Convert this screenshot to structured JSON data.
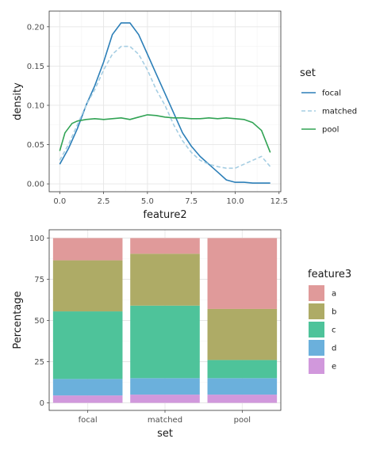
{
  "chart_data": [
    {
      "type": "line",
      "subtype": "density",
      "xlabel": "feature2",
      "ylabel": "density",
      "xlim": [
        -0.6,
        12.6
      ],
      "ylim": [
        -0.01,
        0.22
      ],
      "xticks": [
        0,
        2.5,
        5,
        7.5,
        10,
        12.5
      ],
      "xtick_labels": [
        "0.0",
        "2.5",
        "5.0",
        "7.5",
        "10.0",
        "12.5"
      ],
      "yticks": [
        0,
        0.05,
        0.1,
        0.15,
        0.2
      ],
      "ytick_labels": [
        "0.00",
        "0.05",
        "0.10",
        "0.15",
        "0.20"
      ],
      "grid": true,
      "legend": {
        "title": "set",
        "position": "right"
      },
      "series": [
        {
          "name": "focal",
          "color": "#2c7fb8",
          "dash": "solid",
          "points": [
            [
              0,
              0.025
            ],
            [
              0.5,
              0.045
            ],
            [
              1,
              0.07
            ],
            [
              1.5,
              0.1
            ],
            [
              2,
              0.125
            ],
            [
              2.5,
              0.155
            ],
            [
              3,
              0.19
            ],
            [
              3.5,
              0.205
            ],
            [
              4,
              0.205
            ],
            [
              4.5,
              0.19
            ],
            [
              5,
              0.165
            ],
            [
              5.5,
              0.14
            ],
            [
              6,
              0.115
            ],
            [
              6.5,
              0.09
            ],
            [
              7,
              0.065
            ],
            [
              7.5,
              0.048
            ],
            [
              8,
              0.035
            ],
            [
              8.5,
              0.025
            ],
            [
              9,
              0.015
            ],
            [
              9.5,
              0.005
            ],
            [
              10,
              0.002
            ],
            [
              10.5,
              0.002
            ],
            [
              11,
              0.001
            ],
            [
              11.5,
              0.001
            ],
            [
              12,
              0.001
            ]
          ]
        },
        {
          "name": "matched",
          "color": "#a6cee3",
          "dash": "dashed",
          "points": [
            [
              0,
              0.03
            ],
            [
              0.5,
              0.05
            ],
            [
              1,
              0.075
            ],
            [
              1.5,
              0.1
            ],
            [
              2,
              0.12
            ],
            [
              2.5,
              0.145
            ],
            [
              3,
              0.165
            ],
            [
              3.5,
              0.175
            ],
            [
              4,
              0.175
            ],
            [
              4.5,
              0.165
            ],
            [
              5,
              0.145
            ],
            [
              5.5,
              0.12
            ],
            [
              6,
              0.1
            ],
            [
              6.5,
              0.075
            ],
            [
              7,
              0.055
            ],
            [
              7.5,
              0.04
            ],
            [
              8,
              0.03
            ],
            [
              8.5,
              0.025
            ],
            [
              9,
              0.022
            ],
            [
              9.5,
              0.02
            ],
            [
              10,
              0.02
            ],
            [
              10.5,
              0.025
            ],
            [
              11,
              0.03
            ],
            [
              11.5,
              0.035
            ],
            [
              12,
              0.022
            ]
          ]
        },
        {
          "name": "pool",
          "color": "#31a354",
          "dash": "solid",
          "points": [
            [
              0,
              0.042
            ],
            [
              0.3,
              0.065
            ],
            [
              0.7,
              0.077
            ],
            [
              1,
              0.08
            ],
            [
              1.5,
              0.082
            ],
            [
              2,
              0.083
            ],
            [
              2.5,
              0.082
            ],
            [
              3,
              0.083
            ],
            [
              3.5,
              0.084
            ],
            [
              4,
              0.082
            ],
            [
              4.5,
              0.085
            ],
            [
              5,
              0.088
            ],
            [
              5.5,
              0.087
            ],
            [
              6,
              0.085
            ],
            [
              6.5,
              0.084
            ],
            [
              7,
              0.084
            ],
            [
              7.5,
              0.083
            ],
            [
              8,
              0.083
            ],
            [
              8.5,
              0.084
            ],
            [
              9,
              0.083
            ],
            [
              9.5,
              0.084
            ],
            [
              10,
              0.083
            ],
            [
              10.5,
              0.082
            ],
            [
              11,
              0.078
            ],
            [
              11.5,
              0.068
            ],
            [
              12,
              0.04
            ]
          ]
        }
      ]
    },
    {
      "type": "bar",
      "subtype": "stacked-percent",
      "xlabel": "set",
      "ylabel": "Percentage",
      "ylim": [
        0,
        100
      ],
      "yticks": [
        0,
        25,
        50,
        75,
        100
      ],
      "ytick_labels": [
        "0",
        "25",
        "50",
        "75",
        "100"
      ],
      "categories": [
        "focal",
        "matched",
        "pool"
      ],
      "legend": {
        "title": "feature3",
        "position": "right"
      },
      "series": [
        {
          "name": "a",
          "color": "#e09a9a",
          "values": [
            13.5,
            9.5,
            43
          ]
        },
        {
          "name": "b",
          "color": "#aeab66",
          "values": [
            31,
            31.5,
            31
          ]
        },
        {
          "name": "c",
          "color": "#4ec39a",
          "values": [
            41,
            44,
            11
          ]
        },
        {
          "name": "d",
          "color": "#6bb0dc",
          "values": [
            10,
            10,
            10
          ]
        },
        {
          "name": "e",
          "color": "#d198dc",
          "values": [
            4.5,
            5,
            5
          ]
        }
      ]
    }
  ]
}
